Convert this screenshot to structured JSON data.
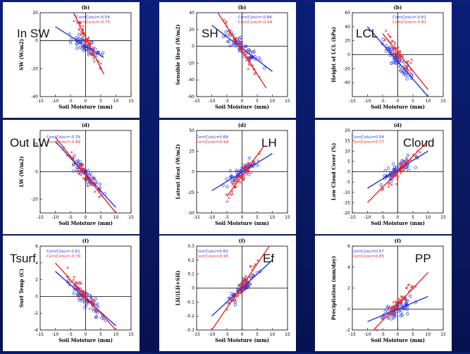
{
  "colors": {
    "blue": "#2233dd",
    "red": "#e8262a",
    "bg": "#0b1e78"
  },
  "chart_data": [
    {
      "type": "scatter",
      "panel_tag": "(b)",
      "big_label": "In SW",
      "ylabel": "SW (W/m2)",
      "xlabel": "Soil Moisture (mm)",
      "xlim": [
        -15,
        15
      ],
      "xticks": [
        -15,
        -10,
        -5,
        0,
        5,
        10,
        15
      ],
      "ylim": [
        -40,
        20
      ],
      "yticks": [
        -40,
        -20,
        0,
        20
      ],
      "legend": [
        {
          "text": "Corr(Colu)=-0.54",
          "color": "blue"
        },
        {
          "text": "Corr(Core)=-0.75",
          "color": "red"
        }
      ],
      "series": [
        {
          "name": "Colu",
          "color": "blue",
          "fit": [
            [
              -10,
              10
            ],
            [
              6,
              -12
            ]
          ]
        },
        {
          "name": "Core",
          "color": "red",
          "fit": [
            [
              -4,
              20
            ],
            [
              6,
              -24
            ]
          ]
        }
      ]
    },
    {
      "type": "scatter",
      "panel_tag": "(b)",
      "big_label": "SH",
      "ylabel": "Sensible Heat (W/m2)",
      "xlabel": "Soil Moisture (mm)",
      "xlim": [
        -15,
        15
      ],
      "xticks": [
        -15,
        -10,
        -5,
        0,
        5,
        10,
        15
      ],
      "ylim": [
        -60,
        40
      ],
      "yticks": [
        -60,
        -40,
        -20,
        0,
        20,
        40
      ],
      "legend": [
        {
          "text": "Corr(Colu)=-0.84",
          "color": "blue"
        },
        {
          "text": "Corr(Core)=-0.94",
          "color": "red"
        }
      ],
      "series": [
        {
          "name": "Colu",
          "color": "blue",
          "fit": [
            [
              -10,
              25
            ],
            [
              10,
              -30
            ]
          ]
        },
        {
          "name": "Core",
          "color": "red",
          "fit": [
            [
              -8,
              40
            ],
            [
              8,
              -50
            ]
          ]
        }
      ]
    },
    {
      "type": "scatter",
      "panel_tag": "(b)",
      "big_label": "LCL",
      "ylabel": "Height of LCL (hPa)",
      "xlabel": "Soil Moisture (mm)",
      "xlim": [
        -15,
        15
      ],
      "xticks": [
        -15,
        -10,
        -5,
        0,
        5,
        10,
        15
      ],
      "ylim": [
        -60,
        60
      ],
      "yticks": [
        -40,
        -20,
        0,
        20,
        40,
        60
      ],
      "legend": [
        {
          "text": "Corr(Colu)=-0.81",
          "color": "blue"
        },
        {
          "text": "Corr(Core)=-0.81",
          "color": "red"
        }
      ],
      "series": [
        {
          "name": "Colu",
          "color": "blue",
          "fit": [
            [
              -10,
              40
            ],
            [
              10,
              -60
            ]
          ]
        },
        {
          "name": "Core",
          "color": "red",
          "fit": [
            [
              -5,
              30
            ],
            [
              10,
              -50
            ]
          ]
        }
      ]
    },
    {
      "type": "scatter",
      "panel_tag": "(d)",
      "big_label": "Out LW",
      "ylabel": "LW (W/m2)",
      "xlabel": "Soil Moisture (mm)",
      "xlim": [
        -15,
        15
      ],
      "xticks": [
        -15,
        -10,
        -5,
        0,
        5,
        10,
        15
      ],
      "ylim": [
        -30,
        30
      ],
      "yticks": [
        -20,
        0,
        20
      ],
      "legend": [
        {
          "text": "Corr(Colu)=-0.79",
          "color": "blue"
        },
        {
          "text": "Corr(Core)=-0.89",
          "color": "red"
        }
      ],
      "series": [
        {
          "name": "Colu",
          "color": "blue",
          "fit": [
            [
              -10,
              22
            ],
            [
              10,
              -26
            ]
          ]
        },
        {
          "name": "Core",
          "color": "red",
          "fit": [
            [
              -10,
              25
            ],
            [
              10,
              -30
            ]
          ]
        }
      ]
    },
    {
      "type": "scatter",
      "panel_tag": "(d)",
      "big_label": "LH",
      "ylabel": "Latent Heat (W/m2)",
      "xlabel": "Soil Moisture (mm)",
      "xlim": [
        -15,
        15
      ],
      "xticks": [
        -15,
        -10,
        -5,
        0,
        5,
        10,
        15
      ],
      "ylim": [
        -50,
        50
      ],
      "yticks": [
        -50,
        -25,
        0,
        25,
        50
      ],
      "legend": [
        {
          "text": "Corr(Colu)=0.68",
          "color": "blue"
        },
        {
          "text": "Corr(Core)=0.94",
          "color": "red"
        }
      ],
      "series": [
        {
          "name": "Colu",
          "color": "blue",
          "fit": [
            [
              -10,
              -23
            ],
            [
              10,
              22
            ]
          ]
        },
        {
          "name": "Core",
          "color": "red",
          "fit": [
            [
              -5,
              -30
            ],
            [
              7,
              30
            ]
          ]
        }
      ]
    },
    {
      "type": "scatter",
      "panel_tag": "(d)",
      "big_label": "Cloud",
      "ylabel": "Low Cloud Cover (%)",
      "xlabel": "Soil Moisture (mm)",
      "xlim": [
        -15,
        15
      ],
      "xticks": [
        -15,
        -10,
        -5,
        0,
        5,
        10,
        15
      ],
      "ylim": [
        -20,
        20
      ],
      "yticks": [
        -20,
        -15,
        -10,
        -5,
        0,
        5,
        10,
        15,
        20
      ],
      "legend": [
        {
          "text": "Corr(Colu)=0.54",
          "color": "blue"
        },
        {
          "text": "Corr(Core)=0.77",
          "color": "red"
        }
      ],
      "series": [
        {
          "name": "Colu",
          "color": "blue",
          "fit": [
            [
              -10,
              -8
            ],
            [
              10,
              10
            ]
          ]
        },
        {
          "name": "Core",
          "color": "red",
          "fit": [
            [
              -10,
              -15
            ],
            [
              10,
              15
            ]
          ]
        }
      ]
    },
    {
      "type": "scatter",
      "panel_tag": "(f)",
      "big_label": "Tsurf",
      "ylabel": "Surf Temp (C)",
      "xlabel": "Soil Moisture (mm)",
      "xlim": [
        -15,
        15
      ],
      "xticks": [
        -15,
        -10,
        -5,
        0,
        5,
        10,
        15
      ],
      "ylim": [
        -4,
        6
      ],
      "yticks": [
        -4,
        -2,
        0,
        2,
        4,
        6
      ],
      "legend": [
        {
          "text": "Corr(Colu)=-0.61",
          "color": "blue"
        },
        {
          "text": "Corr(Core)=-0.79",
          "color": "red"
        }
      ],
      "series": [
        {
          "name": "Colu",
          "color": "blue",
          "fit": [
            [
              -10,
              3
            ],
            [
              10,
              -3.5
            ]
          ]
        },
        {
          "name": "Core",
          "color": "red",
          "fit": [
            [
              -10,
              4
            ],
            [
              10,
              -4
            ]
          ]
        }
      ]
    },
    {
      "type": "scatter",
      "panel_tag": "(f)",
      "big_label": "Ef",
      "ylabel": "LH/(LH+SH)",
      "xlabel": "Soil Moisture (mm)",
      "xlim": [
        -15,
        15
      ],
      "xticks": [
        -15,
        -10,
        -5,
        0,
        5,
        10,
        15
      ],
      "ylim": [
        -0.3,
        0.3
      ],
      "yticks": [
        -0.3,
        -0.2,
        -0.1,
        0,
        0.1,
        0.2,
        0.3
      ],
      "legend": [
        {
          "text": "Corr(Colu)=0.82",
          "color": "blue"
        },
        {
          "text": "Corr(Core)=0.95",
          "color": "red"
        }
      ],
      "series": [
        {
          "name": "Colu",
          "color": "blue",
          "fit": [
            [
              -10,
              -0.2
            ],
            [
              10,
              0.2
            ]
          ]
        },
        {
          "name": "Core",
          "color": "red",
          "fit": [
            [
              -10,
              -0.3
            ],
            [
              9,
              0.3
            ]
          ]
        }
      ]
    },
    {
      "type": "scatter",
      "panel_tag": "(f)",
      "big_label": "PP",
      "ylabel": "Precipitation (mm/day)",
      "xlabel": "Soil Moisture (mm)",
      "xlim": [
        -15,
        15
      ],
      "xticks": [
        -15,
        -10,
        -5,
        0,
        5,
        10,
        15
      ],
      "ylim": [
        -2,
        6
      ],
      "yticks": [
        -2,
        0,
        2,
        4,
        6
      ],
      "legend": [
        {
          "text": "Corr(Colu)=0.57",
          "color": "blue"
        },
        {
          "text": "Corr(Core)=0.85",
          "color": "red"
        }
      ],
      "series": [
        {
          "name": "Colu",
          "color": "blue",
          "fit": [
            [
              -10,
              -1.2
            ],
            [
              10,
              1.2
            ]
          ]
        },
        {
          "name": "Core",
          "color": "red",
          "fit": [
            [
              -8,
              -2
            ],
            [
              10,
              3.5
            ]
          ]
        }
      ]
    }
  ]
}
